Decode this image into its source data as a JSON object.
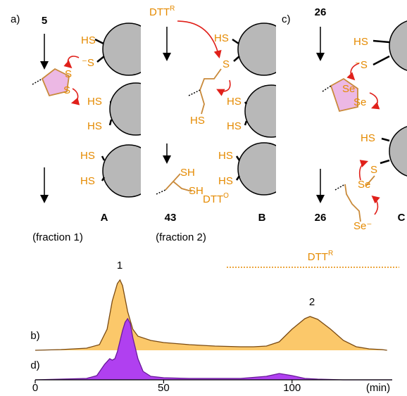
{
  "panel_labels": [
    "a)",
    "c)"
  ],
  "scheme": {
    "a": {
      "compound": "5",
      "thiols": [
        "HS",
        "⁻S",
        "HS",
        "HS",
        "HS",
        "HS"
      ],
      "ring_atoms": [
        "S",
        "S"
      ],
      "resin_label": "A",
      "fraction": "(fraction 1)"
    },
    "b": {
      "reagent": {
        "base": "DTT",
        "sup": "R"
      },
      "thiols": [
        "HS",
        "S",
        "HS",
        "HS",
        "HS",
        "HS"
      ],
      "chain_atom": "HS",
      "product_atoms": [
        "SH",
        "SH"
      ],
      "product": "43",
      "byproduct": {
        "base": "DTT",
        "sup": "O"
      },
      "resin_label": "B",
      "fraction": "(fraction 2)"
    },
    "c": {
      "compound": "26",
      "thiols": [
        "HS",
        "⁻S",
        "HS",
        "S"
      ],
      "ring_atoms": [
        "Se",
        "Se"
      ],
      "chain_atoms": [
        "Se",
        "Se⁻"
      ],
      "product": "26",
      "resin_label": "C"
    }
  },
  "chart_data": {
    "type": "area",
    "x_label": "(min)",
    "xlim": [
      0,
      139
    ],
    "xticks": [
      0,
      50,
      100
    ],
    "ylim": [
      0,
      100
    ],
    "peak_labels": [
      "1",
      "2"
    ],
    "reference": {
      "base": "DTT",
      "sup": "R"
    },
    "series": [
      {
        "name": "b)",
        "color": "#7a4a12",
        "fill": "#fbc86a",
        "x": [
          0,
          10,
          20,
          25,
          28,
          30,
          32,
          33,
          34,
          36,
          38,
          40,
          45,
          50,
          60,
          70,
          80,
          85,
          90,
          95,
          100,
          105,
          107,
          110,
          115,
          120,
          125,
          130,
          135,
          137
        ],
        "values": [
          0,
          1,
          3,
          8,
          30,
          70,
          95,
          100,
          92,
          55,
          30,
          20,
          14,
          11,
          8,
          6,
          5,
          5,
          6,
          12,
          30,
          45,
          48,
          44,
          30,
          14,
          5,
          2,
          1,
          0
        ]
      },
      {
        "name": "d)",
        "color": "#6a1a9a",
        "fill": "#b040f0",
        "x": [
          0,
          10,
          20,
          24,
          27,
          29,
          30,
          31,
          32,
          34,
          35,
          36,
          37,
          38,
          40,
          42,
          45,
          50,
          60,
          70,
          80,
          90,
          95,
          100,
          105,
          110,
          120,
          130,
          139
        ],
        "values": [
          0,
          1,
          2,
          6,
          22,
          30,
          28,
          30,
          40,
          70,
          82,
          87,
          80,
          60,
          30,
          12,
          5,
          3,
          2,
          2,
          2,
          5,
          9,
          6,
          2,
          1,
          0,
          0,
          0
        ]
      }
    ]
  }
}
